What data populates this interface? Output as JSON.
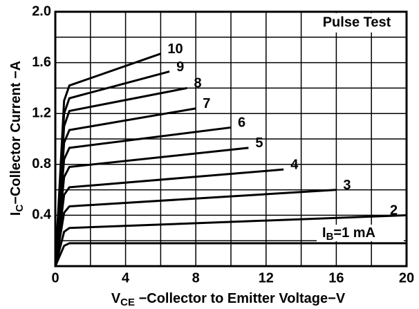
{
  "chart_data": {
    "type": "line",
    "x_label_parts": [
      "V",
      "CE",
      " −Collector to Emitter Voltage−V"
    ],
    "y_label_parts": [
      "I",
      "C",
      "−Collector Current −A"
    ],
    "box_text": "Pulse Test",
    "annotation_parts": [
      "I",
      "B",
      "=1 mA"
    ],
    "color": "#000000",
    "xlim": [
      0,
      20
    ],
    "ylim": [
      0,
      2.0
    ],
    "xticks": [
      0,
      4,
      8,
      12,
      16,
      20
    ],
    "yticks": [
      0.4,
      0.8,
      1.2,
      1.6,
      {
        "value": 2.0,
        "label": "2.0"
      }
    ],
    "xgrid": [
      2,
      4,
      6,
      8,
      10,
      12,
      14,
      16,
      18
    ],
    "ygrid": [
      0.2,
      0.4,
      0.6,
      0.8,
      1.0,
      1.2,
      1.4,
      1.6,
      1.8
    ],
    "grid": true,
    "series": [
      {
        "name": "10",
        "x": [
          0,
          0.5,
          0.8,
          6
        ],
        "values": [
          0,
          1.3,
          1.42,
          1.67
        ]
      },
      {
        "name": "9",
        "x": [
          0,
          0.5,
          0.8,
          6.5
        ],
        "values": [
          0,
          1.2,
          1.32,
          1.53
        ]
      },
      {
        "name": "8",
        "x": [
          0,
          0.5,
          0.8,
          7.5
        ],
        "values": [
          0,
          1.1,
          1.22,
          1.4
        ]
      },
      {
        "name": "7",
        "x": [
          0,
          0.5,
          0.8,
          8
        ],
        "values": [
          0,
          0.97,
          1.07,
          1.24
        ]
      },
      {
        "name": "6",
        "x": [
          0,
          0.5,
          0.8,
          10
        ],
        "values": [
          0,
          0.84,
          0.93,
          1.09
        ]
      },
      {
        "name": "5",
        "x": [
          0,
          0.5,
          0.8,
          11
        ],
        "values": [
          0,
          0.7,
          0.78,
          0.93
        ]
      },
      {
        "name": "4",
        "x": [
          0,
          0.5,
          0.8,
          13
        ],
        "values": [
          0,
          0.56,
          0.62,
          0.76
        ]
      },
      {
        "name": "3",
        "x": [
          0,
          0.5,
          0.8,
          16
        ],
        "values": [
          0,
          0.42,
          0.47,
          0.6
        ]
      },
      {
        "name": "2",
        "x": [
          0,
          0.5,
          0.8,
          20
        ],
        "values": [
          0,
          0.27,
          0.3,
          0.4
        ]
      },
      {
        "x": [
          0,
          0.5,
          0.8,
          20
        ],
        "values": [
          0,
          0.16,
          0.18,
          0.18
        ]
      }
    ]
  }
}
